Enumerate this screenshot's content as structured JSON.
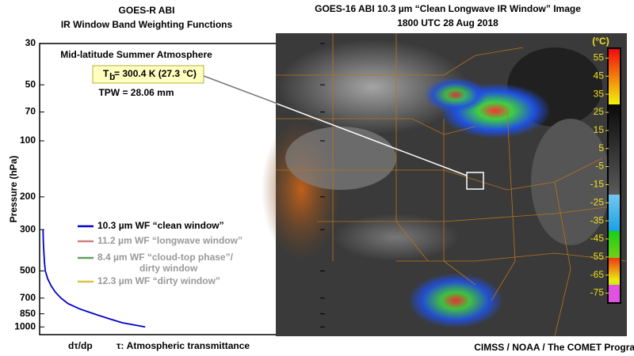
{
  "chart_data": [
    {
      "type": "line",
      "title": "GOES-R ABI",
      "subtitle": "IR Window Band Weighting Functions",
      "annotations": [
        "Mid-latitude Summer Atmosphere",
        "TPW = 28.06 mm"
      ],
      "brightness_temperature": {
        "symbol": "T",
        "subscript": "b",
        "text": " = 300.4 K (27.3 °C)"
      },
      "y_label": "Pressure (hPa)",
      "x_label": "dτ/dp",
      "x_note": "τ: Atmospheric transmittance",
      "ylog": true,
      "ylim": [
        30,
        1100
      ],
      "yticks": [
        30,
        50,
        70,
        100,
        200,
        300,
        500,
        700,
        850,
        1000
      ],
      "xlim": [
        0,
        1
      ],
      "series": [
        {
          "name": "10.3 µm WF “clean window”",
          "color": "#0000cc",
          "y": [
            300,
            350,
            400,
            450,
            500,
            550,
            600,
            650,
            700,
            750,
            800,
            850,
            900,
            950,
            1000
          ],
          "values": [
            0.012,
            0.013,
            0.015,
            0.017,
            0.02,
            0.028,
            0.04,
            0.055,
            0.075,
            0.1,
            0.14,
            0.19,
            0.24,
            0.29,
            0.37
          ]
        }
      ],
      "legend_extra": [
        {
          "name": "11.2 µm WF “longwave window”",
          "color": "#d08080"
        },
        {
          "name": "8.4 µm WF “cloud-top phase”/",
          "name2": "dirty window",
          "color": "#60a060"
        },
        {
          "name": "12.3 µm WF “dirty window”",
          "color": "#e0c040"
        }
      ]
    },
    {
      "type": "image",
      "title": "GOES-16 ABI 10.3 µm “Clean Longwave IR Window” Image",
      "subtitle": "1800 UTC  28 Aug 2018",
      "colorbar_unit": "(°C)",
      "colorbar_lim": [
        -80,
        60
      ],
      "colorbar_ticks": [
        55,
        45,
        35,
        25,
        15,
        5,
        -5,
        -15,
        -25,
        -35,
        -45,
        -55,
        -65,
        -75
      ],
      "credit": "CIMSS / NOAA / The COMET Program"
    }
  ]
}
